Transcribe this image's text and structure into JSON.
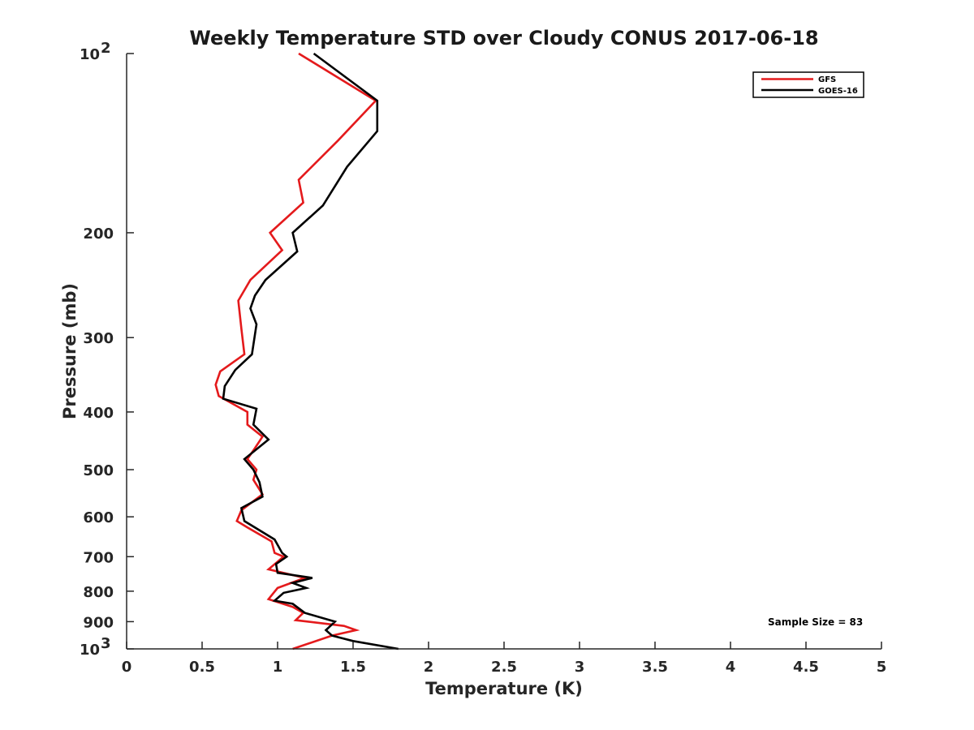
{
  "chart_data": {
    "type": "line",
    "title": "Weekly Temperature STD over Cloudy CONUS 2017-06-18",
    "xlabel": "Temperature (K)",
    "ylabel": "Pressure (mb)",
    "xlim": [
      0,
      5
    ],
    "ylim": [
      100,
      1000
    ],
    "y_scale": "log",
    "y_reversed": true,
    "x_ticks": [
      "0",
      "0.5",
      "1",
      "1.5",
      "2",
      "2.5",
      "3",
      "3.5",
      "4",
      "4.5",
      "5"
    ],
    "y_ticks": [
      {
        "value": 100,
        "base": "10",
        "exp": "2"
      },
      {
        "value": 200,
        "label": "200"
      },
      {
        "value": 300,
        "label": "300"
      },
      {
        "value": 400,
        "label": "400"
      },
      {
        "value": 500,
        "label": "500"
      },
      {
        "value": 600,
        "label": "600"
      },
      {
        "value": 700,
        "label": "700"
      },
      {
        "value": 800,
        "label": "800"
      },
      {
        "value": 900,
        "label": "900"
      },
      {
        "value": 1000,
        "base": "10",
        "exp": "3"
      }
    ],
    "grid": false,
    "legend_position": "top-right",
    "annotation": "Sample Size = 83",
    "series": [
      {
        "name": "GFS",
        "color": "#e41a1c",
        "points": [
          [
            1.14,
            100
          ],
          [
            1.65,
            120
          ],
          [
            1.4,
            140
          ],
          [
            1.14,
            163
          ],
          [
            1.17,
            178
          ],
          [
            0.95,
            200
          ],
          [
            1.03,
            214
          ],
          [
            0.82,
            240
          ],
          [
            0.74,
            260
          ],
          [
            0.76,
            290
          ],
          [
            0.78,
            320
          ],
          [
            0.62,
            342
          ],
          [
            0.59,
            360
          ],
          [
            0.61,
            376
          ],
          [
            0.8,
            400
          ],
          [
            0.8,
            420
          ],
          [
            0.9,
            440
          ],
          [
            0.85,
            460
          ],
          [
            0.8,
            480
          ],
          [
            0.86,
            500
          ],
          [
            0.84,
            520
          ],
          [
            0.9,
            550
          ],
          [
            0.76,
            585
          ],
          [
            0.73,
            610
          ],
          [
            0.8,
            625
          ],
          [
            0.96,
            660
          ],
          [
            0.98,
            690
          ],
          [
            1.04,
            700
          ],
          [
            0.94,
            735
          ],
          [
            1.18,
            760
          ],
          [
            1.0,
            790
          ],
          [
            0.94,
            825
          ],
          [
            1.1,
            850
          ],
          [
            1.17,
            870
          ],
          [
            1.12,
            895
          ],
          [
            1.44,
            915
          ],
          [
            1.52,
            930
          ],
          [
            1.36,
            950
          ],
          [
            1.1,
            1000
          ]
        ]
      },
      {
        "name": "GOES-16",
        "color": "#000000",
        "points": [
          [
            1.24,
            100
          ],
          [
            1.66,
            120
          ],
          [
            1.66,
            135
          ],
          [
            1.46,
            155
          ],
          [
            1.3,
            180
          ],
          [
            1.1,
            200
          ],
          [
            1.13,
            215
          ],
          [
            0.92,
            240
          ],
          [
            0.85,
            255
          ],
          [
            0.82,
            268
          ],
          [
            0.86,
            285
          ],
          [
            0.83,
            320
          ],
          [
            0.72,
            340
          ],
          [
            0.65,
            362
          ],
          [
            0.64,
            380
          ],
          [
            0.86,
            395
          ],
          [
            0.84,
            420
          ],
          [
            0.94,
            445
          ],
          [
            0.78,
            480
          ],
          [
            0.84,
            500
          ],
          [
            0.88,
            525
          ],
          [
            0.9,
            555
          ],
          [
            0.76,
            580
          ],
          [
            0.78,
            610
          ],
          [
            0.98,
            655
          ],
          [
            1.03,
            690
          ],
          [
            1.06,
            700
          ],
          [
            0.99,
            720
          ],
          [
            1.0,
            745
          ],
          [
            1.23,
            760
          ],
          [
            1.1,
            775
          ],
          [
            1.19,
            790
          ],
          [
            1.04,
            805
          ],
          [
            0.98,
            830
          ],
          [
            1.1,
            840
          ],
          [
            1.18,
            870
          ],
          [
            1.38,
            900
          ],
          [
            1.32,
            930
          ],
          [
            1.36,
            950
          ],
          [
            1.5,
            970
          ],
          [
            1.8,
            1000
          ]
        ]
      }
    ]
  }
}
